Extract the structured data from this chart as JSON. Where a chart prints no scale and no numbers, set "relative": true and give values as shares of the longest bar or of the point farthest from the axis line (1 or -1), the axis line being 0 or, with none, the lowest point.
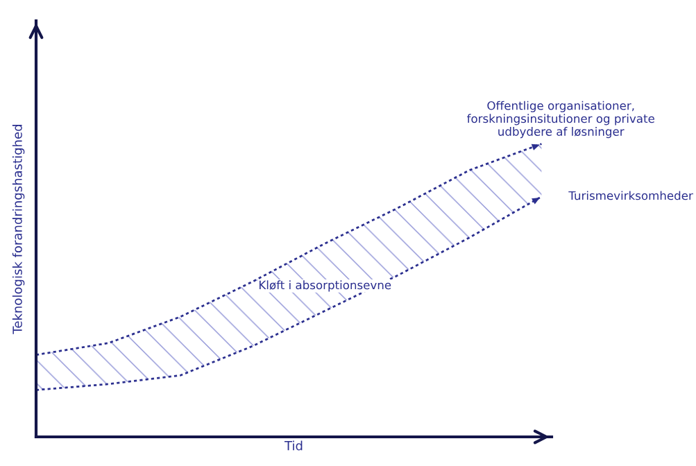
{
  "chart_data": {
    "type": "line",
    "relative": true,
    "xlabel": "Tid",
    "ylabel": "Teknologisk forandringshastighed",
    "tick_labels": false,
    "line_style": "dotted",
    "marker": "none",
    "categories": [
      null,
      null,
      null,
      null,
      null,
      null,
      null,
      null
    ],
    "series": [
      {
        "name": "Offentlige organisationer,\nforskningsinsitutioner og private\nudbydere af løsninger",
        "color": "#2b2f8f",
        "values": [
          0.28,
          0.32,
          0.41,
          0.53,
          0.66,
          0.78,
          0.91,
          1.0
        ],
        "lower": [
          0.16,
          0.18,
          0.21,
          0.31,
          0.43,
          0.55,
          0.68,
          0.82
        ],
        "upper": [
          0.28,
          0.32,
          0.41,
          0.53,
          0.66,
          0.78,
          0.91,
          1.0
        ]
      },
      {
        "name": "Turismevirksomheder",
        "color": "#2b2f8f",
        "values": [
          0.16,
          0.18,
          0.21,
          0.31,
          0.43,
          0.55,
          0.68,
          0.82
        ]
      }
    ],
    "annotations": [
      "Kløft i absorptionsevne"
    ]
  }
}
